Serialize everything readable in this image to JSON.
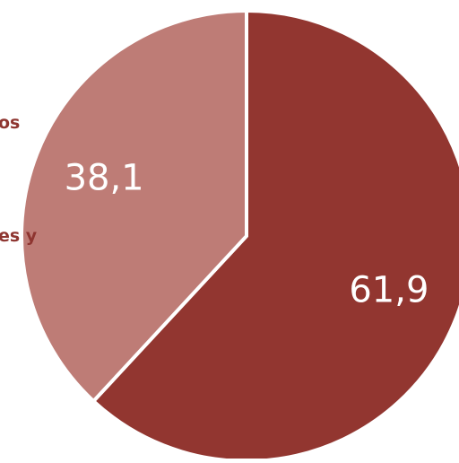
{
  "chart_data": {
    "type": "pie",
    "title": "",
    "legend_text": [
      "os",
      "es y"
    ],
    "series": [
      {
        "name": "",
        "value": 61.9,
        "label": "61,9",
        "color": "#923630"
      },
      {
        "name": "",
        "value": 38.1,
        "label": "38,1",
        "color": "#be7c76"
      }
    ],
    "start_angle_deg": 0,
    "direction": "clockwise",
    "label_color": "#ffffff",
    "slice_border_color": "#ffffff"
  }
}
